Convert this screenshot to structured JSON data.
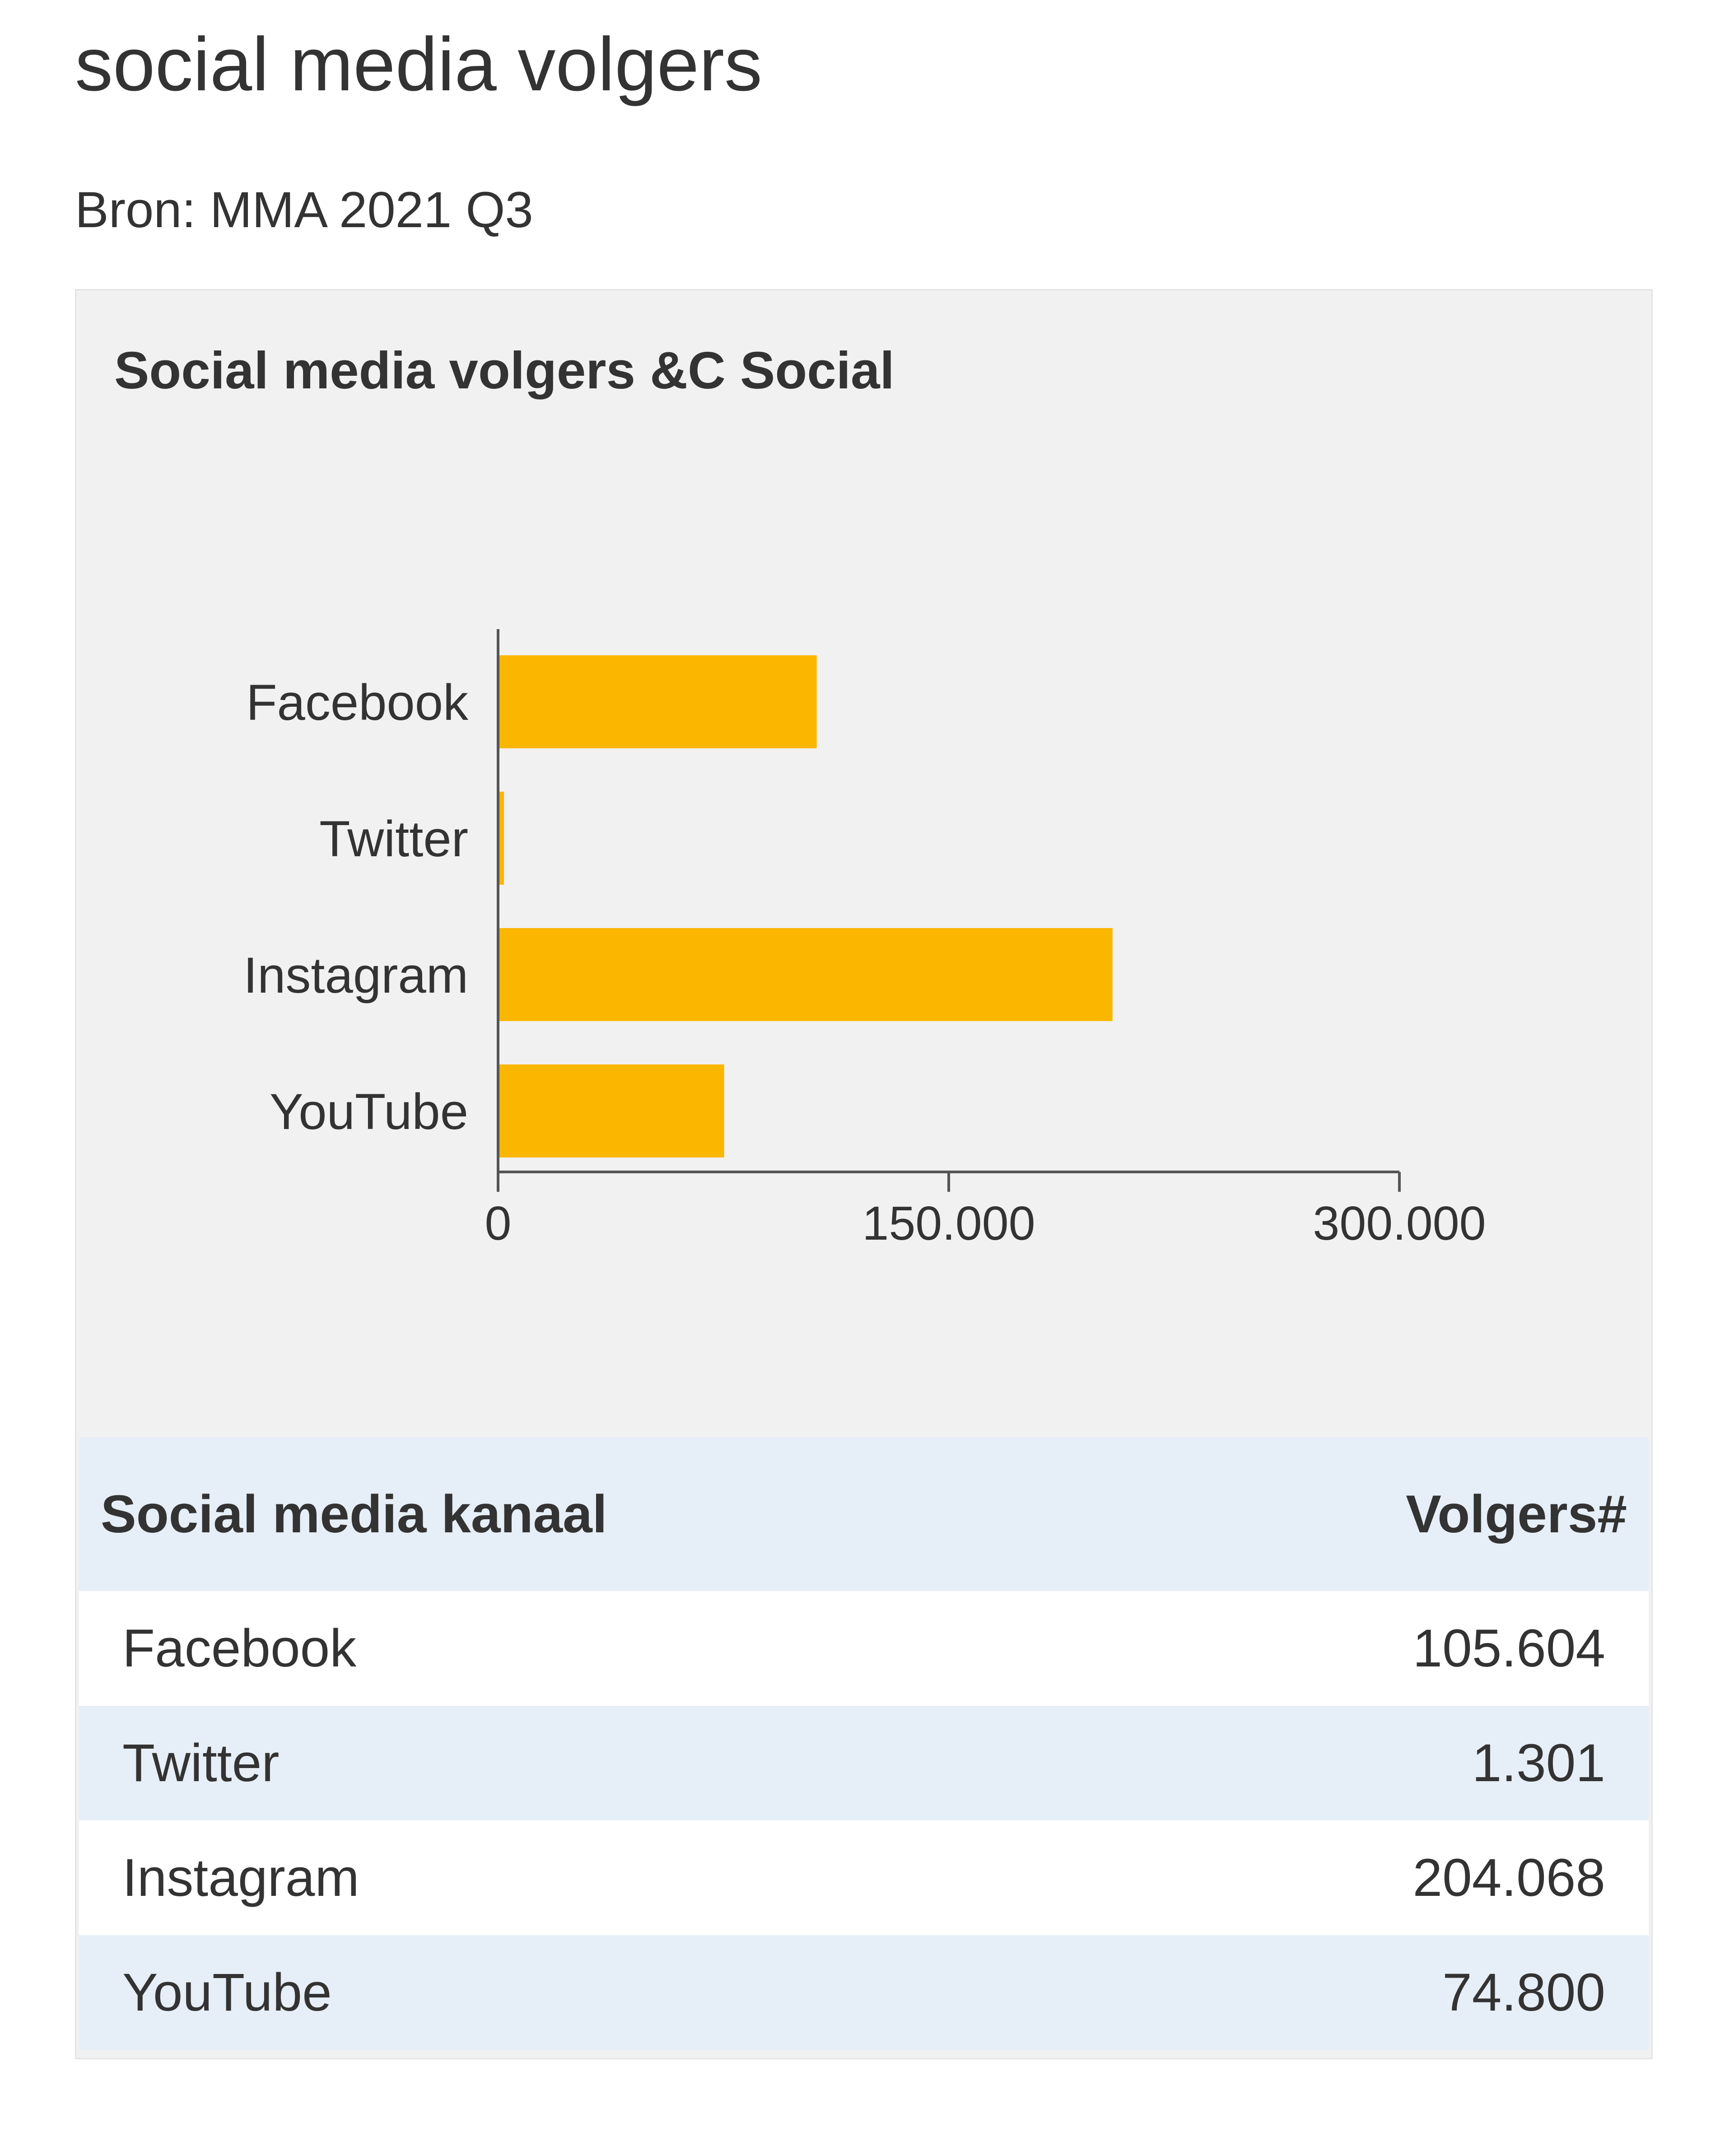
{
  "page": {
    "title": "social media volgers",
    "source": "Bron: MMA 2021 Q3"
  },
  "chart_data": {
    "type": "bar",
    "orientation": "horizontal",
    "title": "Social media volgers &C Social",
    "categories": [
      "Facebook",
      "Twitter",
      "Instagram",
      "YouTube"
    ],
    "values": [
      105604,
      1301,
      204068,
      74800
    ],
    "xlim": [
      0,
      300000
    ],
    "xticks": [
      0,
      150000,
      300000
    ],
    "xtick_labels": [
      "0",
      "150.000",
      "300.000"
    ],
    "grid": false,
    "bar_color": "#fbb600"
  },
  "table": {
    "headers": [
      "Social media kanaal",
      "Volgers#"
    ],
    "rows": [
      [
        "Facebook",
        "105.604"
      ],
      [
        "Twitter",
        "1.301"
      ],
      [
        "Instagram",
        "204.068"
      ],
      [
        "YouTube",
        "74.800"
      ]
    ]
  }
}
